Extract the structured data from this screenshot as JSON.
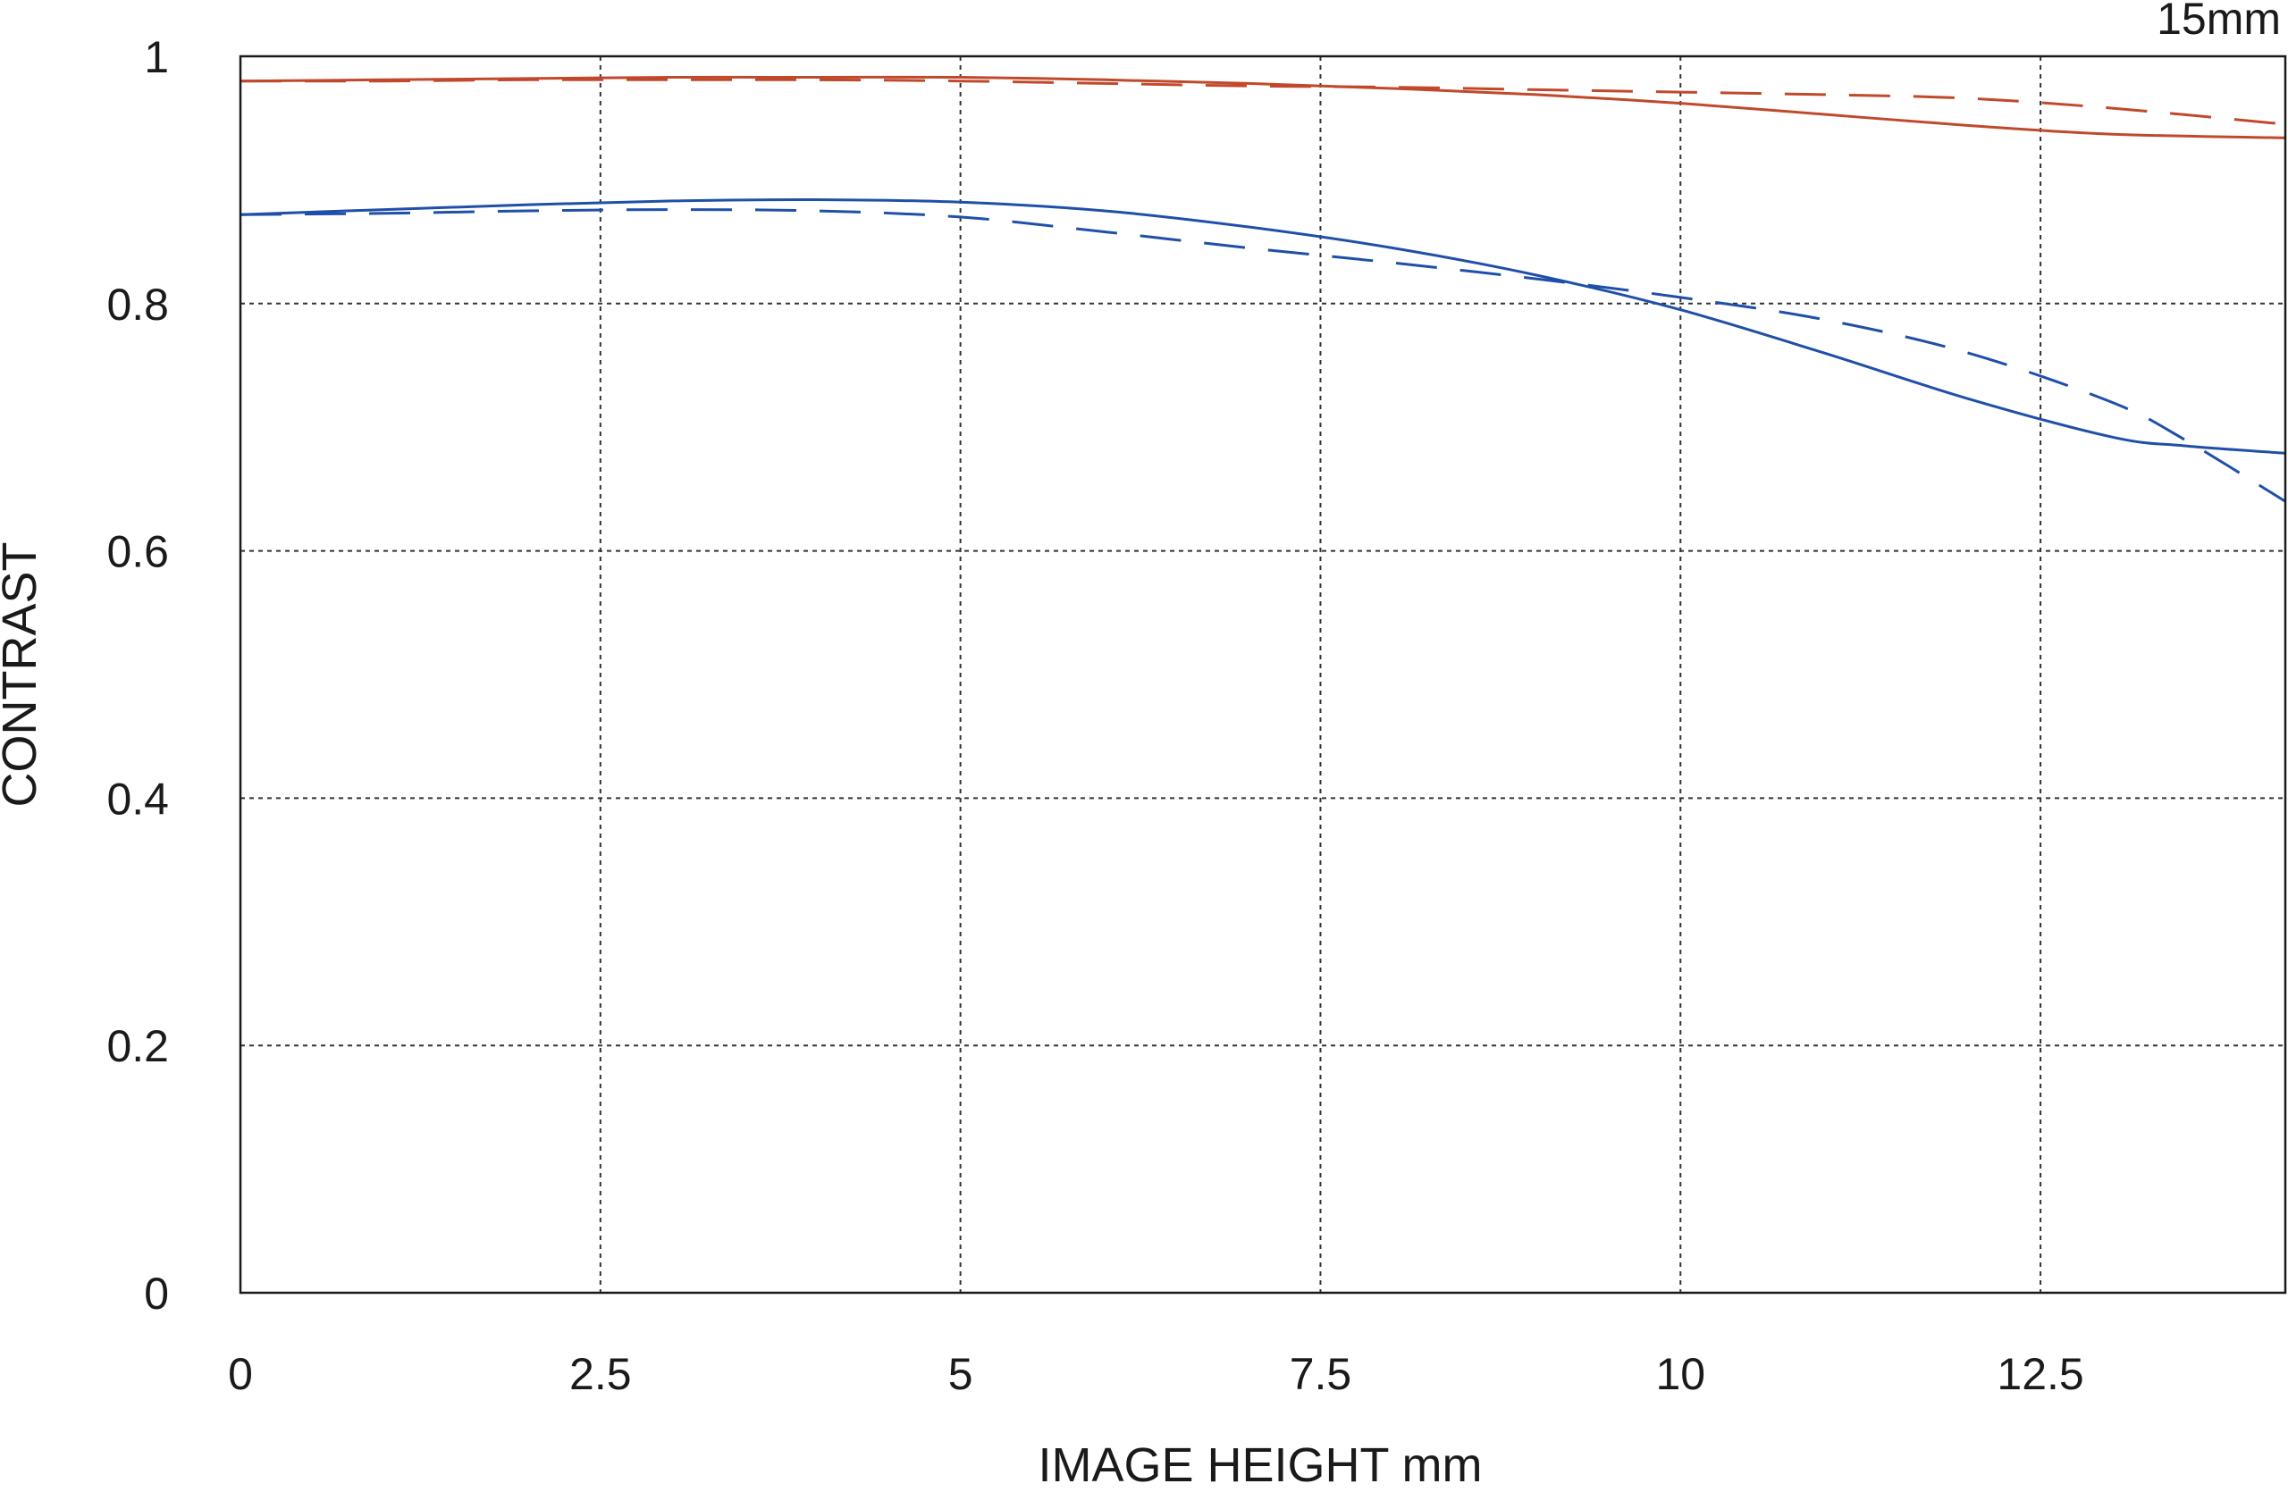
{
  "chart_data": {
    "type": "line",
    "title": "15mm",
    "xlabel": "IMAGE HEIGHT  mm",
    "ylabel": "CONTRAST",
    "xlim": [
      0,
      14.2
    ],
    "ylim": [
      0,
      1
    ],
    "x_ticks": [
      0,
      2.5,
      5,
      7.5,
      10,
      12.5
    ],
    "x_tick_labels": [
      "0",
      "2.5",
      "5",
      "7.5",
      "10",
      "12.5"
    ],
    "y_ticks": [
      0,
      0.2,
      0.4,
      0.6,
      0.8,
      1
    ],
    "y_tick_labels": [
      "0",
      "0.2",
      "0.4",
      "0.6",
      "0.8",
      "1"
    ],
    "grid": true,
    "colors": {
      "red": "#c0492b",
      "blue": "#1f4fa8"
    },
    "series": [
      {
        "color": "red",
        "dash": "solid",
        "x": [
          0,
          1,
          2,
          3,
          4,
          5,
          6,
          7,
          8,
          9,
          10,
          11,
          12,
          13,
          14.2
        ],
        "y": [
          0.98,
          0.981,
          0.982,
          0.983,
          0.983,
          0.983,
          0.981,
          0.978,
          0.974,
          0.969,
          0.962,
          0.953,
          0.944,
          0.937,
          0.934
        ]
      },
      {
        "color": "red",
        "dash": "dashed",
        "x": [
          0,
          1,
          2,
          3,
          4,
          5,
          6,
          7,
          8,
          9,
          10,
          11,
          12,
          13,
          14.2
        ],
        "y": [
          0.98,
          0.98,
          0.981,
          0.981,
          0.981,
          0.98,
          0.978,
          0.976,
          0.975,
          0.973,
          0.971,
          0.969,
          0.966,
          0.958,
          0.945
        ]
      },
      {
        "color": "blue",
        "dash": "solid",
        "x": [
          0,
          1,
          2,
          3,
          4,
          5,
          6,
          7,
          8,
          9,
          10,
          11,
          12,
          13,
          13.5,
          14.2
        ],
        "y": [
          0.872,
          0.876,
          0.88,
          0.883,
          0.884,
          0.882,
          0.875,
          0.862,
          0.845,
          0.823,
          0.795,
          0.76,
          0.723,
          0.692,
          0.685,
          0.679
        ]
      },
      {
        "color": "blue",
        "dash": "dashed",
        "x": [
          0,
          1,
          2,
          3,
          4,
          5,
          6,
          7,
          8,
          9,
          10,
          11,
          12,
          13,
          13.5,
          14.2
        ],
        "y": [
          0.872,
          0.873,
          0.875,
          0.876,
          0.875,
          0.87,
          0.858,
          0.845,
          0.833,
          0.82,
          0.805,
          0.787,
          0.76,
          0.72,
          0.69,
          0.64
        ]
      }
    ]
  }
}
